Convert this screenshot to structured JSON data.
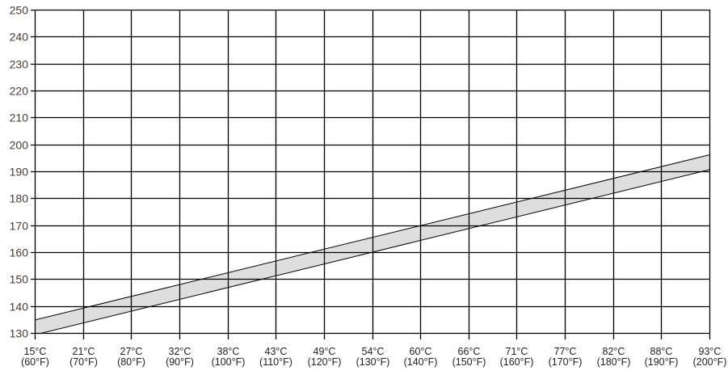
{
  "chart_data": {
    "type": "area",
    "title": "",
    "xlabel": "",
    "ylabel": "",
    "x": [
      60,
      70,
      80,
      90,
      100,
      110,
      120,
      130,
      140,
      150,
      160,
      170,
      180,
      190,
      200
    ],
    "x_tick_labels": [
      [
        "15°C",
        "(60°F)"
      ],
      [
        "21°C",
        "(70°F)"
      ],
      [
        "27°C",
        "(80°F)"
      ],
      [
        "32°C",
        "(90°F)"
      ],
      [
        "38°C",
        "(100°F)"
      ],
      [
        "43°C",
        "(110°F)"
      ],
      [
        "49°C",
        "(120°F)"
      ],
      [
        "54°C",
        "(130°F)"
      ],
      [
        "60°C",
        "(140°F)"
      ],
      [
        "66°C",
        "(150°F)"
      ],
      [
        "71°C",
        "(160°F)"
      ],
      [
        "77°C",
        "(170°F)"
      ],
      [
        "82°C",
        "(180°F)"
      ],
      [
        "88°C",
        "(190°F)"
      ],
      [
        "93°C",
        "(200°F)"
      ]
    ],
    "xlim": [
      60,
      200
    ],
    "ylim": [
      130,
      250
    ],
    "y_ticks": [
      130,
      140,
      150,
      160,
      170,
      180,
      190,
      200,
      210,
      220,
      230,
      240,
      250
    ],
    "grid": true,
    "band": {
      "x": [
        60,
        200
      ],
      "upper": [
        134.8,
        196.1
      ],
      "lower": [
        129.3,
        190.6
      ]
    },
    "colors": {
      "band_fill": "#dedede",
      "line": "#000000",
      "tick_label": "#4a3a30"
    }
  }
}
